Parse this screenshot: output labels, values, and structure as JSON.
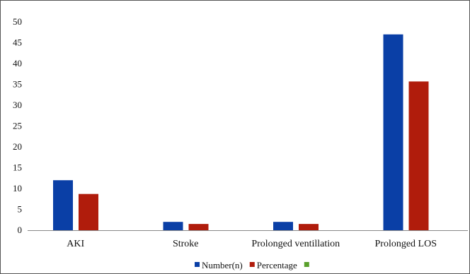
{
  "chart_data": {
    "type": "bar",
    "title": "",
    "xlabel": "",
    "ylabel": "",
    "categories": [
      "AKI",
      "Stroke",
      "Prolonged ventillation",
      "Prolonged LOS"
    ],
    "series": [
      {
        "name": "Number(n)",
        "color": "#0a3fa6",
        "values": [
          12,
          2,
          2,
          47
        ]
      },
      {
        "name": "Percentage",
        "color": "#b01c0c",
        "values": [
          8.7,
          1.5,
          1.5,
          35.7
        ]
      },
      {
        "name": "",
        "color": "#5aa02c",
        "values": [
          0,
          0,
          0,
          0
        ]
      }
    ],
    "ylim": [
      0,
      50
    ],
    "yticks": [
      0,
      5,
      10,
      15,
      20,
      25,
      30,
      35,
      40,
      45,
      50
    ],
    "grid": false,
    "legend_position": "bottom"
  }
}
